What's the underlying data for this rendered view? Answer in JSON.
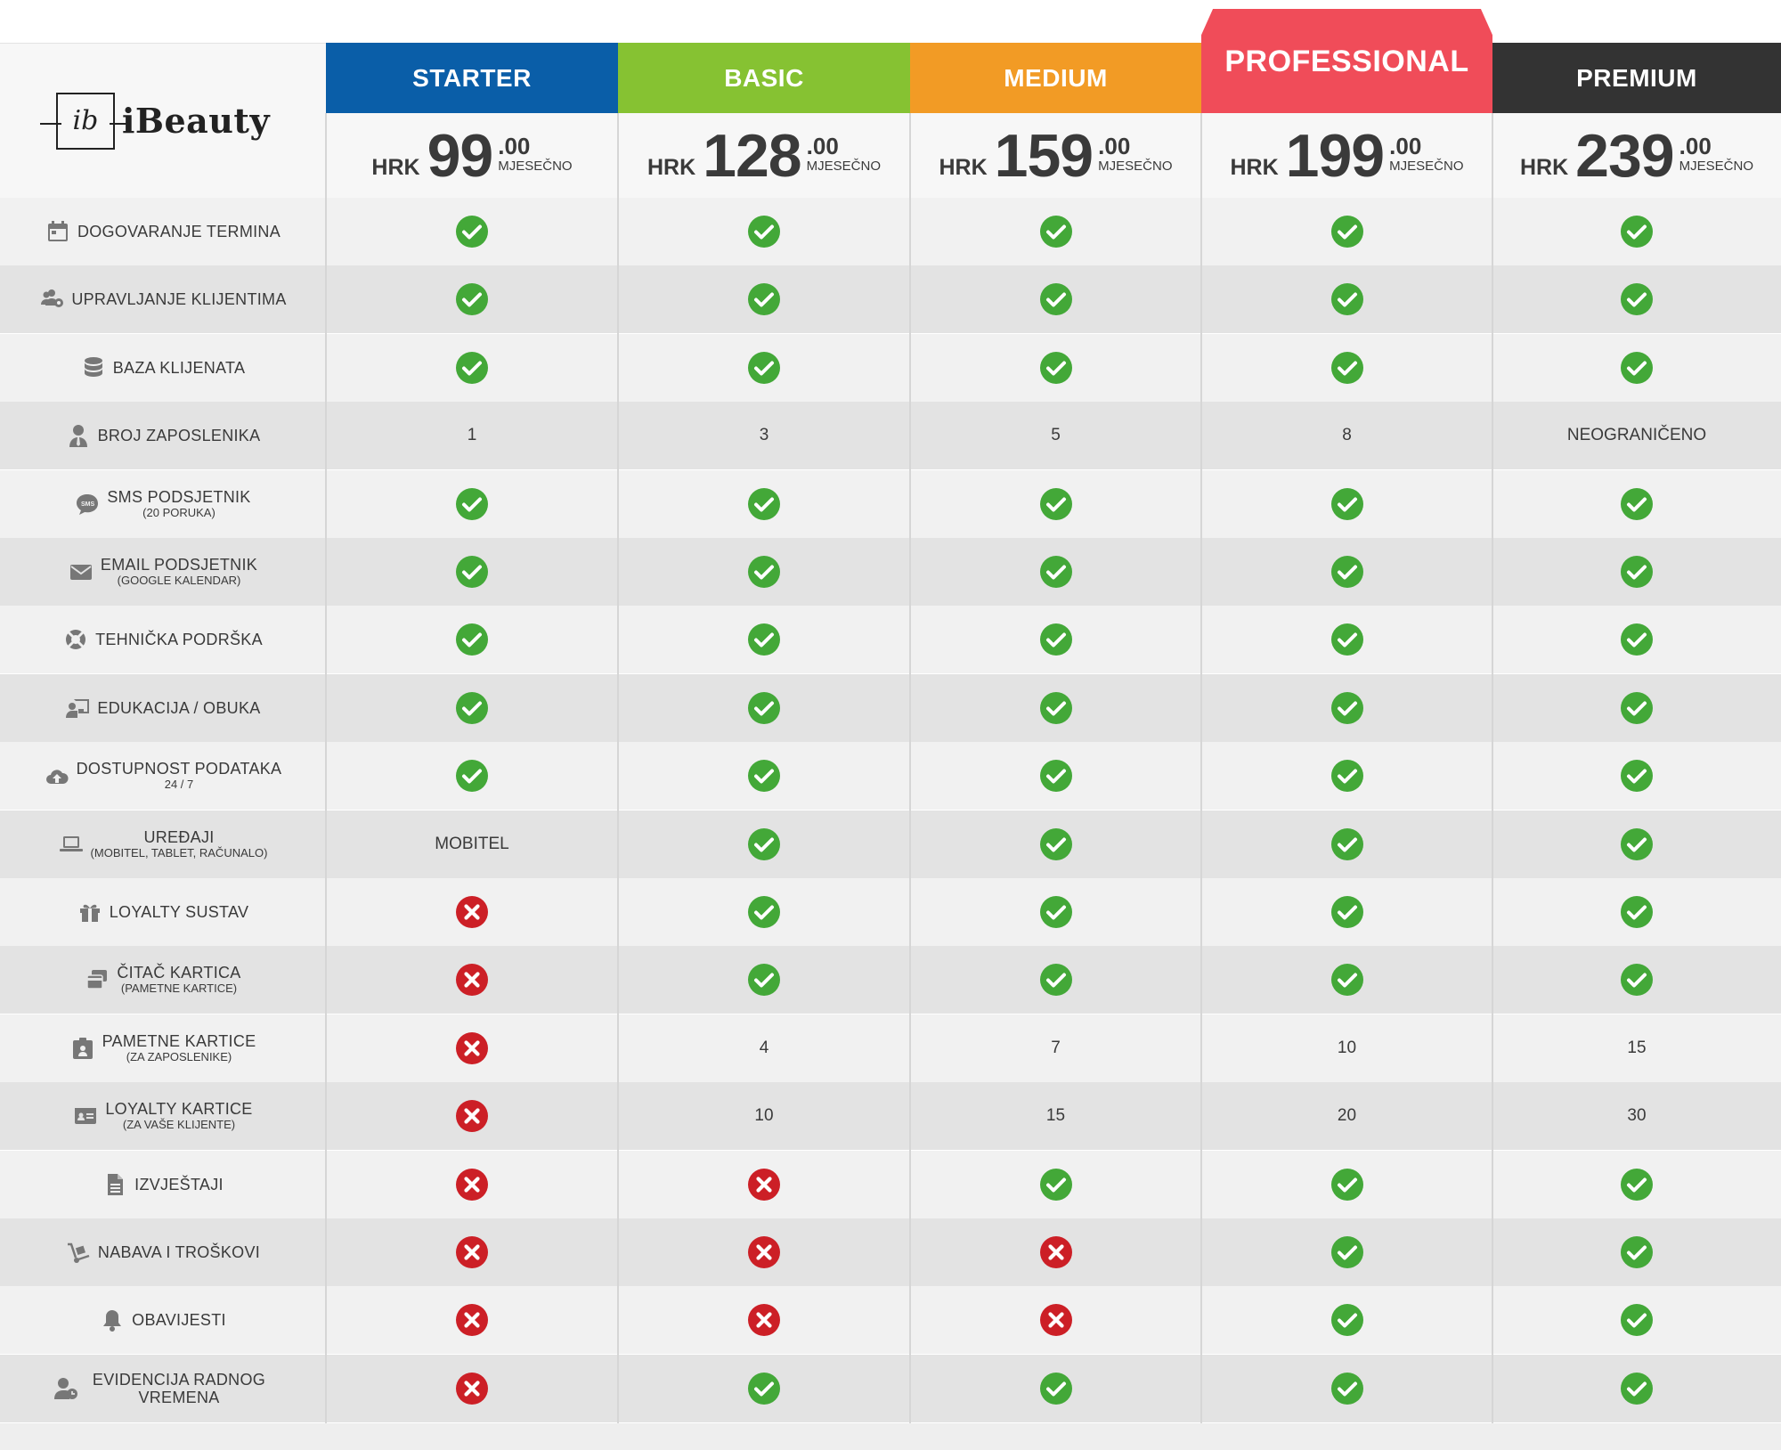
{
  "brand": {
    "mark": "ib",
    "name": "iBeauty"
  },
  "colors": {
    "check": "#43a838",
    "cross": "#cc1f26",
    "starter": "#0a5ea8",
    "basic": "#86c232",
    "medium": "#f29b25",
    "professional": "#f04c59",
    "premium": "#333333"
  },
  "plans": [
    {
      "name": "STARTER",
      "currency": "HRK",
      "price": "99",
      "cents": ".00",
      "period": "MJESEČNO",
      "color": "#0a5ea8"
    },
    {
      "name": "BASIC",
      "currency": "HRK",
      "price": "128",
      "cents": ".00",
      "period": "MJESEČNO",
      "color": "#86c232"
    },
    {
      "name": "MEDIUM",
      "currency": "HRK",
      "price": "159",
      "cents": ".00",
      "period": "MJESEČNO",
      "color": "#f29b25"
    },
    {
      "name": "PROFESSIONAL",
      "currency": "HRK",
      "price": "199",
      "cents": ".00",
      "period": "MJESEČNO",
      "color": "#f04c59"
    },
    {
      "name": "PREMIUM",
      "currency": "HRK",
      "price": "239",
      "cents": ".00",
      "period": "MJESEČNO",
      "color": "#333333"
    }
  ],
  "features": [
    {
      "icon": "calendar-icon",
      "label": "DOGOVARANJE TERMINA",
      "sub": "",
      "values": [
        "check",
        "check",
        "check",
        "check",
        "check"
      ]
    },
    {
      "icon": "users-cog-icon",
      "label": "UPRAVLJANJE KLIJENTIMA",
      "sub": "",
      "values": [
        "check",
        "check",
        "check",
        "check",
        "check"
      ]
    },
    {
      "icon": "database-icon",
      "label": "BAZA KLIJENATA",
      "sub": "",
      "values": [
        "check",
        "check",
        "check",
        "check",
        "check"
      ]
    },
    {
      "icon": "user-tie-icon",
      "label": "BROJ ZAPOSLENIKA",
      "sub": "",
      "values": [
        "1",
        "3",
        "5",
        "8",
        "NEOGRANIČENO"
      ]
    },
    {
      "icon": "sms-icon",
      "label": "SMS PODSJETNIK",
      "sub": "(20 PORUKA)",
      "values": [
        "check",
        "check",
        "check",
        "check",
        "check"
      ]
    },
    {
      "icon": "envelope-icon",
      "label": "EMAIL PODSJETNIK",
      "sub": "(GOOGLE KALENDAR)",
      "values": [
        "check",
        "check",
        "check",
        "check",
        "check"
      ]
    },
    {
      "icon": "lifebuoy-icon",
      "label": "TEHNIČKA PODRŠKA",
      "sub": "",
      "values": [
        "check",
        "check",
        "check",
        "check",
        "check"
      ]
    },
    {
      "icon": "chalkboard-teacher-icon",
      "label": "EDUKACIJA / OBUKA",
      "sub": "",
      "values": [
        "check",
        "check",
        "check",
        "check",
        "check"
      ]
    },
    {
      "icon": "cloud-upload-icon",
      "label": "DOSTUPNOST PODATAKA",
      "sub": "24 / 7",
      "values": [
        "check",
        "check",
        "check",
        "check",
        "check"
      ]
    },
    {
      "icon": "laptop-icon",
      "label": "UREĐAJI",
      "sub": "(MOBITEL, TABLET, RAČUNALO)",
      "values": [
        "MOBITEL",
        "check",
        "check",
        "check",
        "check"
      ]
    },
    {
      "icon": "gift-icon",
      "label": "LOYALTY SUSTAV",
      "sub": "",
      "values": [
        "cross",
        "check",
        "check",
        "check",
        "check"
      ]
    },
    {
      "icon": "cards-icon",
      "label": "ČITAČ KARTICA",
      "sub": "(PAMETNE KARTICE)",
      "values": [
        "cross",
        "check",
        "check",
        "check",
        "check"
      ]
    },
    {
      "icon": "id-badge-icon",
      "label": "PAMETNE KARTICE",
      "sub": "(ZA ZAPOSLENIKE)",
      "values": [
        "cross",
        "4",
        "7",
        "10",
        "15"
      ]
    },
    {
      "icon": "id-card-icon",
      "label": "LOYALTY KARTICE",
      "sub": "(ZA VAŠE KLIJENTE)",
      "values": [
        "cross",
        "10",
        "15",
        "20",
        "30"
      ]
    },
    {
      "icon": "file-icon",
      "label": "IZVJEŠTAJI",
      "sub": "",
      "values": [
        "cross",
        "cross",
        "check",
        "check",
        "check"
      ]
    },
    {
      "icon": "dolly-icon",
      "label": "NABAVA I TROŠKOVI",
      "sub": "",
      "values": [
        "cross",
        "cross",
        "cross",
        "check",
        "check"
      ]
    },
    {
      "icon": "bell-icon",
      "label": "OBAVIJESTI",
      "sub": "",
      "values": [
        "cross",
        "cross",
        "cross",
        "check",
        "check"
      ]
    },
    {
      "icon": "user-clock-icon",
      "label": "EVIDENCIJA RADNOG VREMENA",
      "sub": "",
      "values": [
        "cross",
        "check",
        "check",
        "check",
        "check"
      ]
    }
  ]
}
